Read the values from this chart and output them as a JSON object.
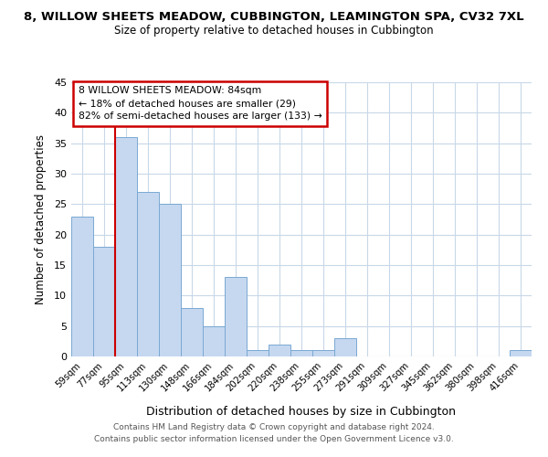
{
  "title_line1": "8, WILLOW SHEETS MEADOW, CUBBINGTON, LEAMINGTON SPA, CV32 7XL",
  "title_line2": "Size of property relative to detached houses in Cubbington",
  "xlabel": "Distribution of detached houses by size in Cubbington",
  "ylabel": "Number of detached properties",
  "footer_line1": "Contains HM Land Registry data © Crown copyright and database right 2024.",
  "footer_line2": "Contains public sector information licensed under the Open Government Licence v3.0.",
  "bin_labels": [
    "59sqm",
    "77sqm",
    "95sqm",
    "113sqm",
    "130sqm",
    "148sqm",
    "166sqm",
    "184sqm",
    "202sqm",
    "220sqm",
    "238sqm",
    "255sqm",
    "273sqm",
    "291sqm",
    "309sqm",
    "327sqm",
    "345sqm",
    "362sqm",
    "380sqm",
    "398sqm",
    "416sqm"
  ],
  "bar_values": [
    23,
    18,
    36,
    27,
    25,
    8,
    5,
    13,
    1,
    2,
    1,
    1,
    3,
    0,
    0,
    0,
    0,
    0,
    0,
    0,
    1
  ],
  "bar_color": "#c5d8f0",
  "bar_edge_color": "#7aa8d2",
  "ylim": [
    0,
    45
  ],
  "yticks": [
    0,
    5,
    10,
    15,
    20,
    25,
    30,
    35,
    40,
    45
  ],
  "marker_line_color": "#cc0000",
  "annotation_title": "8 WILLOW SHEETS MEADOW: 84sqm",
  "annotation_line2": "← 18% of detached houses are smaller (29)",
  "annotation_line3": "82% of semi-detached houses are larger (133) →",
  "annotation_box_color": "#ffffff",
  "annotation_box_edge": "#cc0000",
  "background_color": "#ffffff",
  "grid_color": "#c8d8e8"
}
